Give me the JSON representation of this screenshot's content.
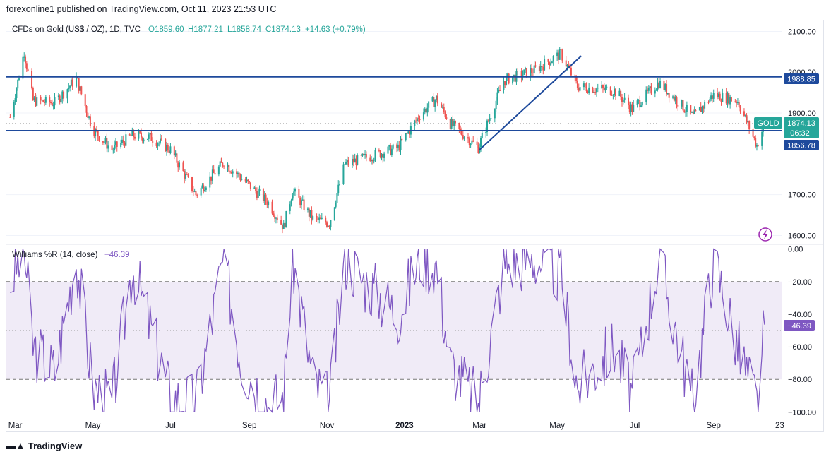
{
  "header": {
    "published": "forexonline1 published on TradingView.com, Oct 11, 2023 21:53 UTC"
  },
  "legend": {
    "instrument": "CFDs on Gold (US$ / OZ), 1D, TVC",
    "open": "O1859.60",
    "high": "H1877.21",
    "low": "L1858.74",
    "close": "C1874.13",
    "change": "+14.63 (+0.79%)"
  },
  "indicator": {
    "label": "Williams %R (14, close)",
    "value": "−46.39"
  },
  "price_axis": [
    "2100.00",
    "1900.00",
    "1700.00",
    "1600.00"
  ],
  "price_axis_hidden_label": "2000.00",
  "wr_axis": [
    "0.00",
    "−20.00",
    "−40.00",
    "−60.00",
    "−80.00",
    "−100.00"
  ],
  "time_axis": [
    "Mar",
    "May",
    "Jul",
    "Sep",
    "Nov",
    "2023",
    "Mar",
    "May",
    "Jul",
    "Sep",
    "23"
  ],
  "badges": {
    "resistance": "1988.85",
    "symbol": "GOLD",
    "last_price": "1874.13",
    "countdown": "06:32",
    "support": "1856.78",
    "wr_value": "−46.39"
  },
  "footer": {
    "brand": "TradingView"
  },
  "colors": {
    "up": "#26a69a",
    "down": "#ef5350",
    "line": "#2962ff",
    "level": "#1e4a9c",
    "wr": "#7e57c2"
  },
  "chart_data": [
    {
      "type": "candlestick",
      "title": "CFDs on Gold (US$ / OZ), 1D, TVC",
      "x_range": [
        "2022-02",
        "2023-10"
      ],
      "ylim": [
        1580,
        2125
      ],
      "close_series": [
        {
          "date": "2022-02-25",
          "close": 1890
        },
        {
          "date": "2022-03-08",
          "close": 2050
        },
        {
          "date": "2022-03-15",
          "close": 1930
        },
        {
          "date": "2022-04-01",
          "close": 1925
        },
        {
          "date": "2022-04-18",
          "close": 1985
        },
        {
          "date": "2022-05-01",
          "close": 1860
        },
        {
          "date": "2022-05-16",
          "close": 1810
        },
        {
          "date": "2022-06-01",
          "close": 1845
        },
        {
          "date": "2022-06-16",
          "close": 1840
        },
        {
          "date": "2022-07-01",
          "close": 1810
        },
        {
          "date": "2022-07-21",
          "close": 1700
        },
        {
          "date": "2022-08-12",
          "close": 1780
        },
        {
          "date": "2022-08-26",
          "close": 1740
        },
        {
          "date": "2022-09-16",
          "close": 1680
        },
        {
          "date": "2022-09-28",
          "close": 1620
        },
        {
          "date": "2022-10-05",
          "close": 1710
        },
        {
          "date": "2022-10-21",
          "close": 1640
        },
        {
          "date": "2022-11-03",
          "close": 1630
        },
        {
          "date": "2022-11-15",
          "close": 1775
        },
        {
          "date": "2022-12-01",
          "close": 1790
        },
        {
          "date": "2022-12-27",
          "close": 1815
        },
        {
          "date": "2023-01-13",
          "close": 1895
        },
        {
          "date": "2023-01-26",
          "close": 1935
        },
        {
          "date": "2023-02-06",
          "close": 1875
        },
        {
          "date": "2023-02-28",
          "close": 1815
        },
        {
          "date": "2023-03-20",
          "close": 1980
        },
        {
          "date": "2023-04-13",
          "close": 2005
        },
        {
          "date": "2023-05-04",
          "close": 2045
        },
        {
          "date": "2023-05-17",
          "close": 1965
        },
        {
          "date": "2023-06-15",
          "close": 1955
        },
        {
          "date": "2023-06-29",
          "close": 1910
        },
        {
          "date": "2023-07-20",
          "close": 1975
        },
        {
          "date": "2023-08-16",
          "close": 1890
        },
        {
          "date": "2023-09-01",
          "close": 1945
        },
        {
          "date": "2023-09-20",
          "close": 1930
        },
        {
          "date": "2023-10-05",
          "close": 1820
        },
        {
          "date": "2023-10-11",
          "close": 1874
        }
      ],
      "horizontal_levels": [
        1988.85,
        1856.78
      ],
      "last_close_dotted": 1874.13,
      "trendline": [
        {
          "date": "2023-03-01",
          "price": 1810
        },
        {
          "date": "2023-05-20",
          "price": 2040
        }
      ]
    },
    {
      "type": "line",
      "title": "Williams %R (14, close)",
      "ylim": [
        -102,
        2
      ],
      "band": [
        -80,
        -20
      ],
      "series": [
        {
          "name": "Williams %R (14, close)",
          "points": [
            {
              "date": "2022-02-25",
              "value": -20
            },
            {
              "date": "2022-03-08",
              "value": 0
            },
            {
              "date": "2022-03-15",
              "value": -60
            },
            {
              "date": "2022-04-01",
              "value": -75
            },
            {
              "date": "2022-04-18",
              "value": -5
            },
            {
              "date": "2022-05-01",
              "value": -85
            },
            {
              "date": "2022-05-16",
              "value": -95
            },
            {
              "date": "2022-06-01",
              "value": -10
            },
            {
              "date": "2022-06-16",
              "value": -50
            },
            {
              "date": "2022-07-01",
              "value": -90
            },
            {
              "date": "2022-07-21",
              "value": -95
            },
            {
              "date": "2022-08-12",
              "value": -5
            },
            {
              "date": "2022-08-26",
              "value": -70
            },
            {
              "date": "2022-09-16",
              "value": -95
            },
            {
              "date": "2022-09-28",
              "value": -90
            },
            {
              "date": "2022-10-05",
              "value": -5
            },
            {
              "date": "2022-10-21",
              "value": -80
            },
            {
              "date": "2022-11-03",
              "value": -95
            },
            {
              "date": "2022-11-15",
              "value": -5
            },
            {
              "date": "2022-12-01",
              "value": -20
            },
            {
              "date": "2022-12-27",
              "value": -40
            },
            {
              "date": "2023-01-13",
              "value": -5
            },
            {
              "date": "2023-01-26",
              "value": -10
            },
            {
              "date": "2023-02-06",
              "value": -70
            },
            {
              "date": "2023-02-28",
              "value": -95
            },
            {
              "date": "2023-03-20",
              "value": -10
            },
            {
              "date": "2023-04-13",
              "value": -5
            },
            {
              "date": "2023-05-04",
              "value": -15
            },
            {
              "date": "2023-05-17",
              "value": -85
            },
            {
              "date": "2023-06-15",
              "value": -60
            },
            {
              "date": "2023-06-29",
              "value": -90
            },
            {
              "date": "2023-07-20",
              "value": -5
            },
            {
              "date": "2023-08-16",
              "value": -95
            },
            {
              "date": "2023-09-01",
              "value": -5
            },
            {
              "date": "2023-09-20",
              "value": -60
            },
            {
              "date": "2023-10-05",
              "value": -95
            },
            {
              "date": "2023-10-11",
              "value": -46.39
            }
          ]
        }
      ]
    }
  ]
}
